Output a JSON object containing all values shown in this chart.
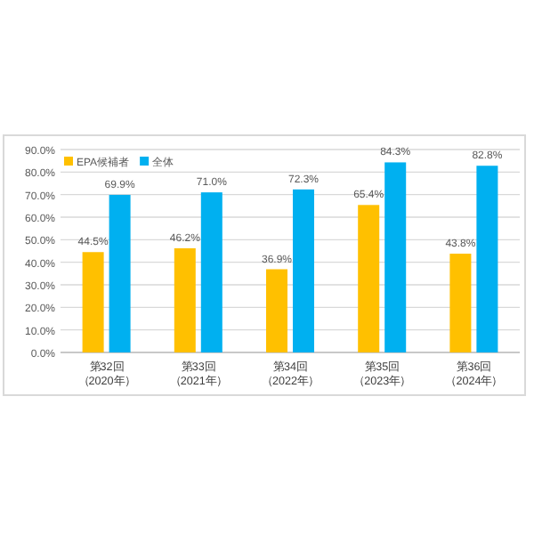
{
  "chart_data": {
    "type": "bar",
    "categories": [
      "第32回（2020年）",
      "第33回（2021年）",
      "第34回（2022年）",
      "第35回（2023年）",
      "第36回（2024年）"
    ],
    "series": [
      {
        "name": "EPA候補者",
        "color": "#ffc000",
        "values": [
          44.5,
          46.2,
          36.9,
          65.4,
          43.8
        ],
        "value_labels": [
          "44.5%",
          "46.2%",
          "36.9%",
          "65.4%",
          "43.8%"
        ]
      },
      {
        "name": "全体",
        "color": "#00b0f0",
        "values": [
          69.9,
          71.0,
          72.3,
          84.3,
          82.8
        ],
        "value_labels": [
          "69.9%",
          "71.0%",
          "72.3%",
          "84.3%",
          "82.8%"
        ]
      }
    ],
    "ylim": [
      0,
      90
    ],
    "yticks": [
      {
        "value": 0,
        "label": "0.0%"
      },
      {
        "value": 10,
        "label": "10.0%"
      },
      {
        "value": 20,
        "label": "20.0%"
      },
      {
        "value": 30,
        "label": "30.0%"
      },
      {
        "value": 40,
        "label": "40.0%"
      },
      {
        "value": 50,
        "label": "50.0%"
      },
      {
        "value": 60,
        "label": "60.0%"
      },
      {
        "value": 70,
        "label": "70.0%"
      },
      {
        "value": 80,
        "label": "80.0%"
      },
      {
        "value": 90,
        "label": "90.0%"
      }
    ],
    "grid": "y",
    "legend": "top left"
  }
}
